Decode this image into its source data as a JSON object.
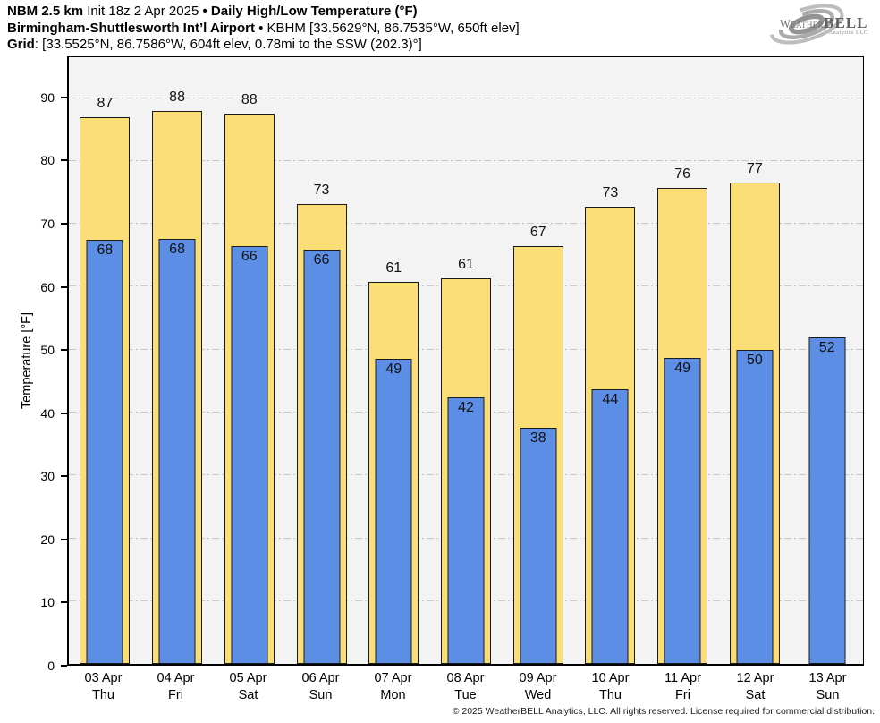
{
  "header": {
    "model": "NBM 2.5 km",
    "init": "Init 18z 2 Apr 2025",
    "separator": "•",
    "product": "Daily High/Low Temperature (°F)",
    "station": "Birmingham-Shuttlesworth Int’l Airport",
    "station_details": "KBHM [33.5629°N, 86.7535°W, 650ft elev]",
    "grid_label": "Grid",
    "grid_details": ": [33.5525°N, 86.7586°W, 604ft elev, 0.78mi to the SSW (202.3)°]"
  },
  "logo": {
    "brand_weather": "Weather",
    "brand_bell": "BELL",
    "brand_sub": "Analytics LLC"
  },
  "chart_data": {
    "type": "bar",
    "title": "Daily High/Low Temperature (°F)",
    "ylabel": "Temperature [°F]",
    "ylim": [
      0,
      96.5
    ],
    "yticks": [
      0,
      10,
      20,
      30,
      40,
      50,
      60,
      70,
      80,
      90
    ],
    "grid": "horizontal dash-dot gridlines every 10°F",
    "legend": "none",
    "days": [
      {
        "date": "03 Apr",
        "weekday": "Thu",
        "high": 87,
        "low": 68,
        "high_bar_top": 87.0,
        "low_bar_top": 67.5
      },
      {
        "date": "04 Apr",
        "weekday": "Fri",
        "high": 88,
        "low": 68,
        "high_bar_top": 88.0,
        "low_bar_top": 67.6
      },
      {
        "date": "05 Apr",
        "weekday": "Sat",
        "high": 88,
        "low": 66,
        "high_bar_top": 87.5,
        "low_bar_top": 66.4
      },
      {
        "date": "06 Apr",
        "weekday": "Sun",
        "high": 73,
        "low": 66,
        "high_bar_top": 73.1,
        "low_bar_top": 65.9
      },
      {
        "date": "07 Apr",
        "weekday": "Mon",
        "high": 61,
        "low": 49,
        "high_bar_top": 60.8,
        "low_bar_top": 48.6
      },
      {
        "date": "08 Apr",
        "weekday": "Tue",
        "high": 61,
        "low": 42,
        "high_bar_top": 61.4,
        "low_bar_top": 42.4
      },
      {
        "date": "09 Apr",
        "weekday": "Wed",
        "high": 67,
        "low": 38,
        "high_bar_top": 66.5,
        "low_bar_top": 37.6
      },
      {
        "date": "10 Apr",
        "weekday": "Thu",
        "high": 73,
        "low": 44,
        "high_bar_top": 72.7,
        "low_bar_top": 43.7
      },
      {
        "date": "11 Apr",
        "weekday": "Fri",
        "high": 76,
        "low": 49,
        "high_bar_top": 75.7,
        "low_bar_top": 48.7
      },
      {
        "date": "12 Apr",
        "weekday": "Sat",
        "high": 77,
        "low": 50,
        "high_bar_top": 76.6,
        "low_bar_top": 50.0
      },
      {
        "date": "13 Apr",
        "weekday": "Sun",
        "high": null,
        "low": 52,
        "high_bar_top": null,
        "low_bar_top": 51.9
      }
    ],
    "series": [
      {
        "name": "High",
        "color": "#FBDF76",
        "values": [
          87,
          88,
          88,
          73,
          61,
          61,
          67,
          73,
          76,
          77,
          null
        ]
      },
      {
        "name": "Low",
        "color": "#5C8EE6",
        "values": [
          68,
          68,
          66,
          66,
          49,
          42,
          38,
          44,
          49,
          50,
          52
        ]
      }
    ]
  },
  "colors": {
    "high_bar": "#FBDF76",
    "low_bar": "#5C8EE6",
    "bar_border": "#1a1a1a",
    "plot_background": "#F3F3F3",
    "gridline": "#C9C9C9",
    "axis": "#000000"
  },
  "footer": {
    "copyright": "© 2025 WeatherBELL Analytics, LLC. All rights reserved. License required for commercial distribution."
  }
}
